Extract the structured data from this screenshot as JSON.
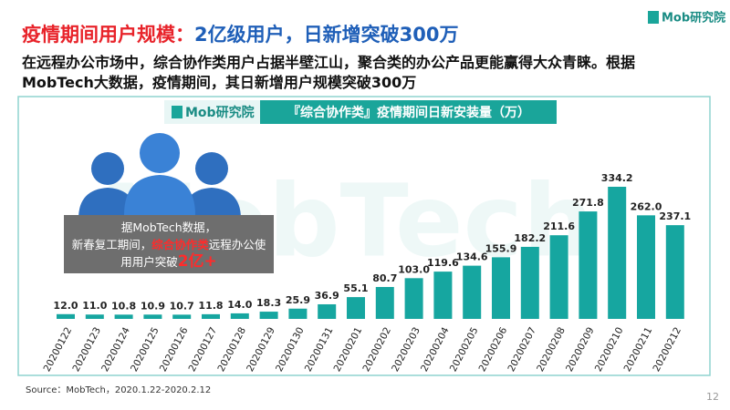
{
  "logo": "Mob研究院",
  "header": {
    "title_part1": "疫情期间用户规模：",
    "title_part2": "2亿级用户，日新增突破300万",
    "subtitle": "在远程办公市场中，综合协作类用户占据半壁江山，聚合类的办公产品更能赢得大众青睐。根据MobTech大数据，疫情期间，其日新增用户规模突破300万"
  },
  "chart_data": {
    "type": "bar",
    "brand": "Mob研究院",
    "title": "『综合协作类』疫情期间日新安装量（万）",
    "watermark": "MobTech",
    "categories": [
      "20200122",
      "20200123",
      "20200124",
      "20200125",
      "20200126",
      "20200127",
      "20200128",
      "20200129",
      "20200130",
      "20200131",
      "20200201",
      "20200202",
      "20200203",
      "20200204",
      "20200205",
      "20200206",
      "20200207",
      "20200208",
      "20200209",
      "20200210",
      "20200211",
      "20200212"
    ],
    "values": [
      12.0,
      11.0,
      10.8,
      10.9,
      10.7,
      11.8,
      14.0,
      18.3,
      25.9,
      36.9,
      55.1,
      80.7,
      103.0,
      119.6,
      134.6,
      155.9,
      182.2,
      211.6,
      271.8,
      334.2,
      262.0,
      237.1
    ],
    "value_labels": [
      "12.0",
      "11.0",
      "10.8",
      "10.9",
      "10.7",
      "11.8",
      "14.0",
      "18.3",
      "25.9",
      "36.9",
      "55.1",
      "80.7",
      "103.0",
      "119.6",
      "134.6",
      "155.9",
      "182.2",
      "211.6",
      "271.8",
      "334.2",
      "262.0",
      "237.1"
    ],
    "color": "#16a6a0",
    "annotation": [
      "据MobTech数据，",
      "新春复工期间，",
      "综合协作类",
      "远程办公使用用户突破",
      "2亿+"
    ]
  },
  "source": "Source：MobTech，2020.1.22-2020.2.12",
  "page_number": "12"
}
